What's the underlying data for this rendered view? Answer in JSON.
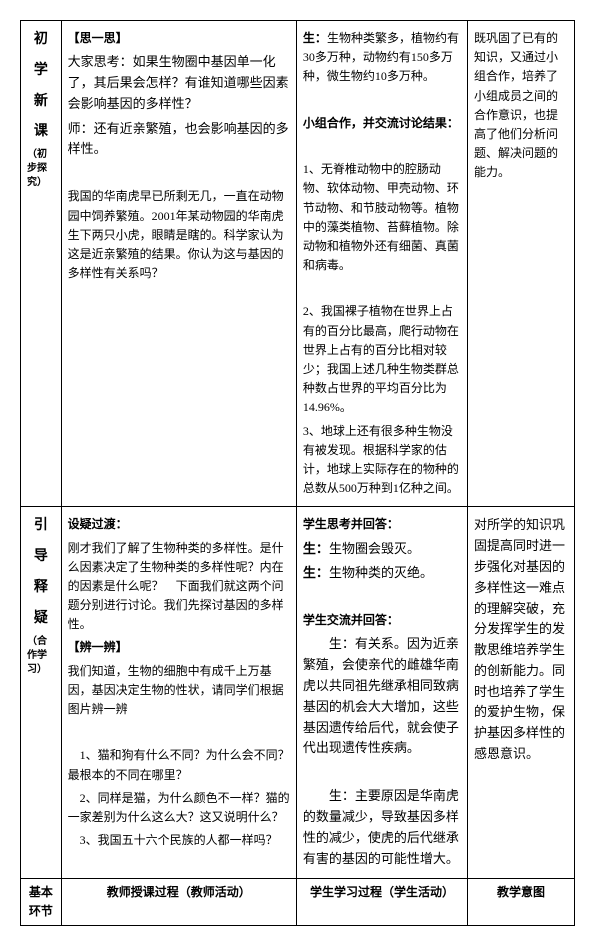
{
  "row1": {
    "label": "初\n学\n新\n课",
    "sublabel": "（初步探究）",
    "teacher_title": "【思一思】",
    "teacher_p1": "大家思考：如果生物圈中基因单一化了，其后果会怎样？有谁知道哪些因素会影响基因的多样性？",
    "teacher_p2": "师：还有近亲繁殖，也会影响基因的多样性。",
    "teacher_p3": "我国的华南虎早已所剩无几，一直在动物园中饲养繁殖。2001年某动物园的华南虎生下两只小虎，眼睛是瞎的。科学家认为这是近亲繁殖的结果。你认为这与基因的多样性有关系吗？",
    "student_p1_prefix": "生：",
    "student_p1": "生物种类繁多，植物约有30多万种，动物约有150多万种，微生物约10多万种。",
    "student_p2_title": "小组合作，并交流讨论结果：",
    "student_p3": "1、无脊椎动物中的腔肠动物、软体动物、甲壳动物、环节动物、和节肢动物等。植物中的藻类植物、苔藓植物。除动物和植物外还有细菌、真菌和病毒。",
    "student_p4": "2、我国裸子植物在世界上占有的百分比最高，爬行动物在世界上占有的百分比相对较少；我国上述几种生物类群总种数占世界的平均百分比为14.96%。",
    "student_p5": "3、地球上还有很多种生物没有被发现。根据科学家的估计，地球上实际存在的物种的总数从500万种到1亿种之间。",
    "intent_p1": "既巩固了已有的知识，又通过小组合作，培养了小组成员之间的合作意识，也提高了他们分析问题、解决问题的能力。"
  },
  "row2": {
    "label": "引\n导\n释\n疑",
    "sublabel": "（合作学习）",
    "teacher_t1": "设疑过渡：",
    "teacher_p1": "刚才我们了解了生物种类的多样性。是什么因素决定了生物种类的多样性呢？内在的因素是什么呢？　下面我们就这两个问题分别进行讨论。我们先探讨基因的多样性。",
    "teacher_t2": "【辨一辨】",
    "teacher_p2": "我们知道，生物的细胞中有成千上万基因，基因决定生物的性状，请同学们根据图片辨一辨",
    "teacher_p3": "1、猫和狗有什么不同？为什么会不同？最根本的不同在哪里？",
    "teacher_p4": "2、同样是猫，为什么颜色不一样？猫的一家差别为什么这么大？这又说明什么？",
    "teacher_p5": "3、我国五十六个民族的人都一样吗？",
    "student_t1": "学生思考并回答：",
    "student_s1_prefix": "生：",
    "student_s1": "生物圈会毁灭。",
    "student_s2_prefix": "生：",
    "student_s2": "生物种类的灭绝。",
    "student_t2": "学生交流并回答：",
    "student_p1": "生：有关系。因为近亲繁殖，会使亲代的雌雄华南虎以共同祖先继承相同致病基因的机会大大增加，这些基因遗传给后代，就会使子代出现遗传性疾病。",
    "student_p2": "生：主要原因是华南虎的数量减少，导致基因多样性的减少，使虎的后代继承有害的基因的可能性增大。",
    "intent_p1": "对所学的知识巩固提高同时进一步强化对基因的多样性这一难点的理解突破，充分发挥学生的发散思维培养学生的创新能力。同时也培养了学生的爱护生物，保护基因多样性的感恩意识。"
  },
  "row3": {
    "col1": "基本环节",
    "col2": "教师授课过程（教师活动）",
    "col3": "学生学习过程（学生活动）",
    "col4": "教学意图"
  }
}
